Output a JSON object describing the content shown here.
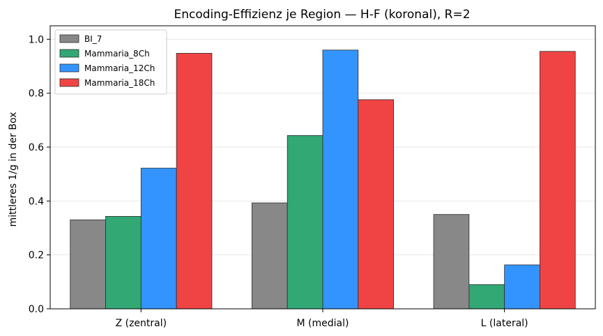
{
  "chart_data": {
    "type": "bar",
    "title": "Encoding-Effizienz je Region — H-F (koronal), R=2",
    "xlabel": "",
    "ylabel": "mittleres 1/g in der Box",
    "categories": [
      "Z (zentral)",
      "M (medial)",
      "L (lateral)"
    ],
    "ylim": [
      0,
      1.05
    ],
    "yticks": [
      0.0,
      0.2,
      0.4,
      0.6,
      0.8,
      1.0
    ],
    "ytick_labels": [
      "0.0",
      "0.2",
      "0.4",
      "0.6",
      "0.8",
      "1.0"
    ],
    "grid": "horizontal",
    "legend_position": "top-left",
    "series": [
      {
        "name": "BI_7",
        "color": "#888888",
        "values": [
          0.33,
          0.393,
          0.35
        ]
      },
      {
        "name": "Mammaria_8Ch",
        "color": "#32a874",
        "values": [
          0.343,
          0.643,
          0.09
        ]
      },
      {
        "name": "Mammaria_12Ch",
        "color": "#3394ff",
        "values": [
          0.522,
          0.96,
          0.163
        ]
      },
      {
        "name": "Mammaria_18Ch",
        "color": "#f04444",
        "values": [
          0.948,
          0.776,
          0.955
        ]
      }
    ]
  }
}
